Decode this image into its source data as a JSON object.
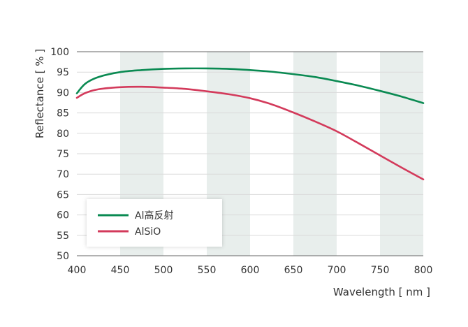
{
  "chart_data": {
    "type": "line",
    "title": "",
    "xlabel": "Wavelength [ nm ]",
    "ylabel": "Reflectance [ % ]",
    "xlim": [
      400,
      800
    ],
    "ylim": [
      50,
      100
    ],
    "xticks": [
      400,
      450,
      500,
      550,
      600,
      650,
      700,
      750,
      800
    ],
    "yticks": [
      50,
      55,
      60,
      65,
      70,
      75,
      80,
      85,
      90,
      95,
      100
    ],
    "shaded_bands": [
      [
        450,
        500
      ],
      [
        550,
        600
      ],
      [
        650,
        700
      ],
      [
        750,
        800
      ]
    ],
    "grid": true,
    "legend": "bottom-left",
    "x": [
      400,
      410,
      425,
      450,
      475,
      500,
      525,
      550,
      575,
      600,
      625,
      650,
      675,
      700,
      725,
      750,
      775,
      800
    ],
    "series": [
      {
        "name": "Al高反射",
        "color": "#0a8a52",
        "values": [
          89.8,
          92.2,
          93.8,
          95.0,
          95.5,
          95.8,
          95.9,
          95.9,
          95.8,
          95.5,
          95.1,
          94.5,
          93.8,
          92.8,
          91.7,
          90.4,
          89.0,
          87.4
        ]
      },
      {
        "name": "AlSiO",
        "color": "#d33a5b",
        "values": [
          88.7,
          89.9,
          90.8,
          91.3,
          91.4,
          91.2,
          90.9,
          90.3,
          89.6,
          88.6,
          87.1,
          85.1,
          82.9,
          80.5,
          77.6,
          74.6,
          71.6,
          68.7
        ]
      }
    ]
  }
}
